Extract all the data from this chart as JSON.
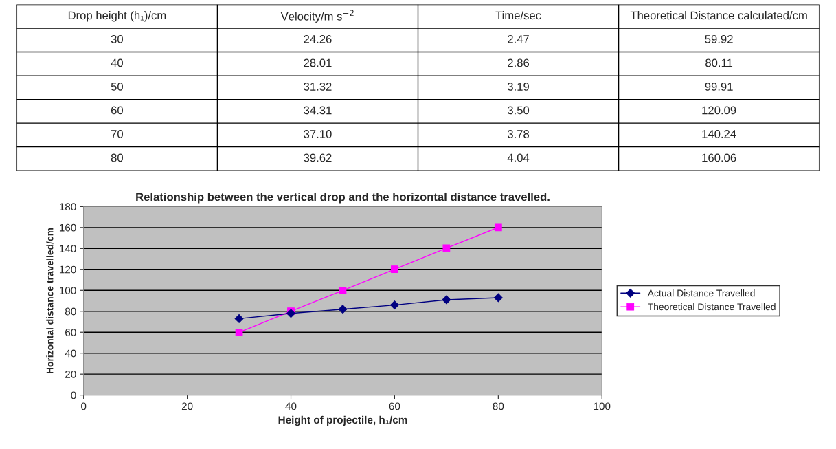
{
  "chart_data": {
    "type": "line",
    "title": "Relationship between the vertical drop and the horizontal distance travelled.",
    "xlabel": "Height of projectile, h₁/cm",
    "ylabel": "Horizontal distance travelled/cm",
    "x": [
      30,
      40,
      50,
      60,
      70,
      80
    ],
    "series": [
      {
        "name": "Actual Distance Travelled",
        "color": "#000080",
        "marker": "diamond",
        "values": [
          73,
          78,
          82,
          86,
          91,
          93
        ]
      },
      {
        "name": "Theoretical Distance Travelled",
        "color": "#ff00ff",
        "marker": "square",
        "values": [
          59.92,
          80.11,
          99.91,
          120.09,
          140.24,
          160.06
        ]
      }
    ],
    "xlim": [
      0,
      100
    ],
    "xticks": [
      0,
      20,
      40,
      60,
      80,
      100
    ],
    "ylim": [
      0,
      180
    ],
    "yticks": [
      0,
      20,
      40,
      60,
      80,
      100,
      120,
      140,
      160,
      180
    ],
    "grid": "y",
    "legend": "right",
    "line_style": "solid",
    "annotations": [
      "Drop height (h₁)/cm",
      "Velocity/m s$^{−2}$",
      "Time/sec",
      "Theoretical Distance calculated/cm",
      "30",
      "24.26",
      "2.47",
      "59.92",
      "40",
      "28.01",
      "2.86",
      "80.11",
      "50",
      "31.32",
      "3.19",
      "99.91",
      "60",
      "34.31",
      "3.50",
      "120.09",
      "70",
      "37.10",
      "3.78",
      "140.24",
      "80",
      "39.62",
      "4.04",
      "160.06"
    ]
  }
}
